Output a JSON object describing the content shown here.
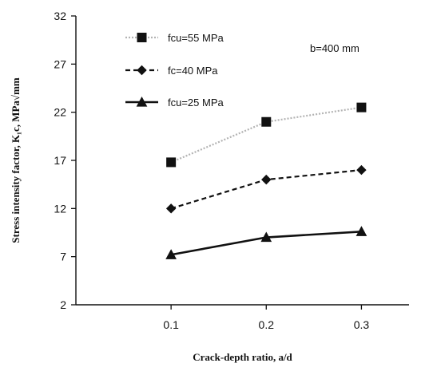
{
  "chart_data": {
    "type": "line",
    "x": [
      0.1,
      0.2,
      0.3
    ],
    "x_tick_labels": [
      "0.1",
      "0.2",
      "0.3"
    ],
    "xlim": [
      0.0,
      0.35
    ],
    "ylim": [
      2,
      32
    ],
    "y_ticks": [
      2,
      7,
      12,
      17,
      22,
      27,
      32
    ],
    "xlabel": "Crack-depth ratio, a/d",
    "ylabel": "Stress intensity factor, K₁c, MPa√mm",
    "annotation": "b=400 mm",
    "legend_position": "top-left",
    "grid": false,
    "series": [
      {
        "name": "fcu=55 MPa",
        "values": [
          16.8,
          21.0,
          22.5
        ],
        "color": "#b3b3b3",
        "marker_color": "#111111",
        "marker": "square",
        "line_style": "dotted"
      },
      {
        "name": "fc=40 MPa",
        "values": [
          12.0,
          15.0,
          16.0
        ],
        "color": "#111111",
        "marker_color": "#111111",
        "marker": "diamond",
        "line_style": "dashed"
      },
      {
        "name": "fcu=25 MPa",
        "values": [
          7.2,
          9.0,
          9.6
        ],
        "color": "#111111",
        "marker_color": "#111111",
        "marker": "triangle",
        "line_style": "solid"
      }
    ]
  }
}
